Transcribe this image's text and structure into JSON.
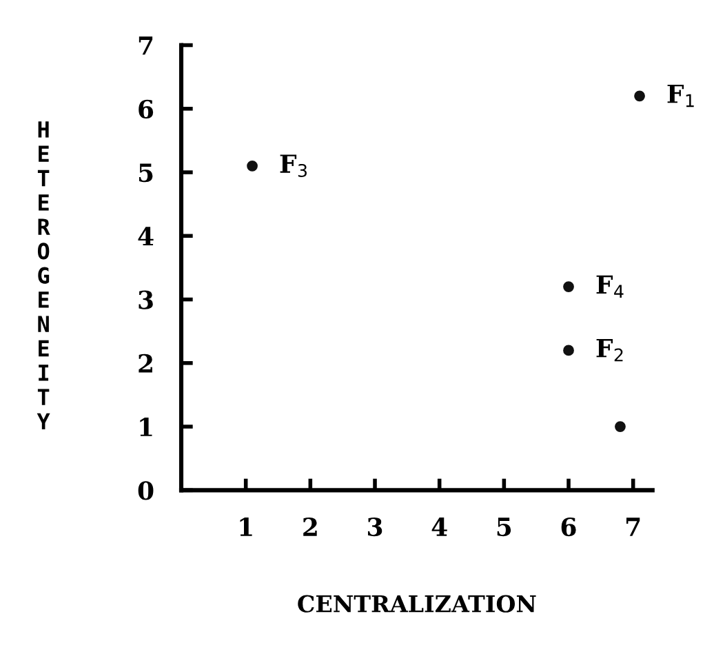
{
  "chart_data": {
    "type": "scatter",
    "xlabel": "CENTRALIZATION",
    "ylabel": "HETEROGENEITY",
    "x": [
      7.1,
      1.1,
      6.0,
      6.0,
      6.8
    ],
    "values": [
      6.2,
      5.1,
      3.2,
      2.2,
      1.0
    ],
    "color": "#111111",
    "marker": "circle",
    "annotations": [
      {
        "text": "F$_{1}$",
        "x": 7.1,
        "y": 6.2
      },
      {
        "text": "F$_{3}$",
        "x": 1.1,
        "y": 5.1
      },
      {
        "text": "F$_{4}$",
        "x": 6.0,
        "y": 3.2
      },
      {
        "text": "F$_{2}$",
        "x": 6.0,
        "y": 2.2
      }
    ],
    "xlim": [
      0,
      7.3
    ],
    "ylim": [
      0,
      7
    ],
    "xticks": [
      1,
      2,
      3,
      4,
      5,
      6,
      7
    ],
    "yticks": [
      0,
      1,
      2,
      3,
      4,
      5,
      6,
      7
    ],
    "grid": false,
    "legend": false
  }
}
